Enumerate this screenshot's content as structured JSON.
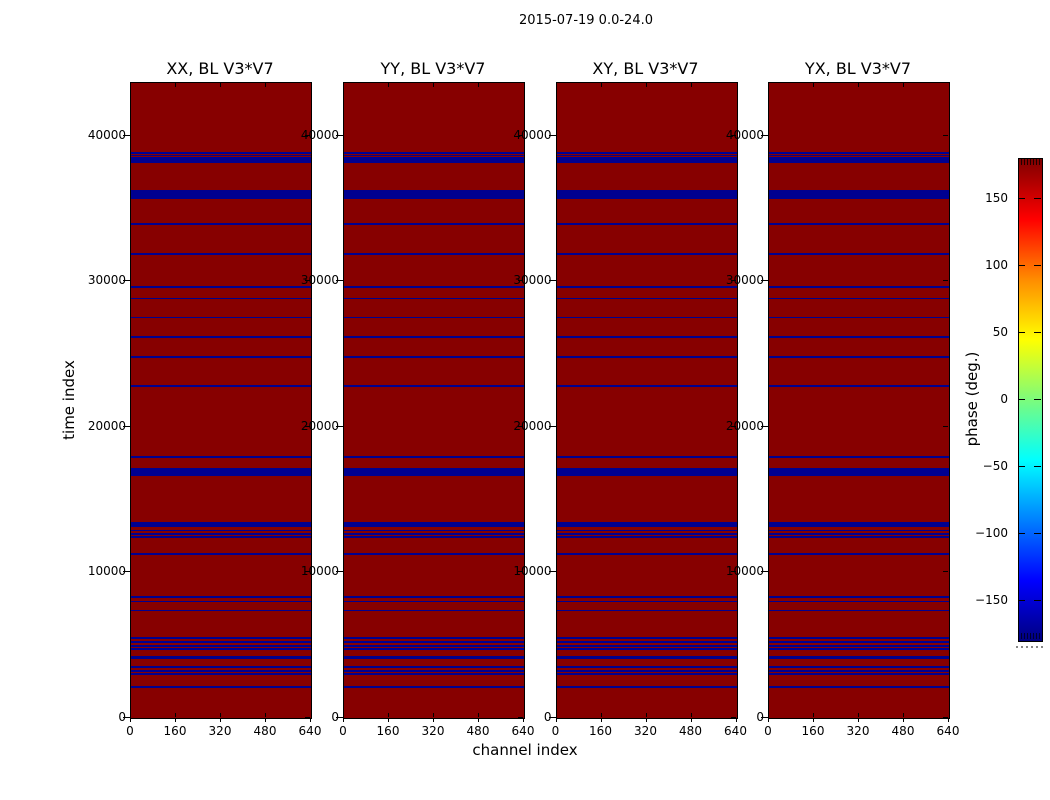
{
  "figure_title": "2015-07-19 0.0-24.0",
  "chart_data": {
    "type": "heatmap",
    "figure_title": "2015-07-19 0.0-24.0",
    "subplots": [
      {
        "title": "XX, BL V3*V7"
      },
      {
        "title": "YY, BL V3*V7"
      },
      {
        "title": "XY, BL V3*V7"
      },
      {
        "title": "YX, BL V3*V7"
      }
    ],
    "xlabel": "channel index",
    "ylabel": "time index",
    "xlim": [
      0,
      640
    ],
    "ylim": [
      0,
      43640
    ],
    "x_ticks": [
      0,
      160,
      320,
      480,
      640
    ],
    "x_tick_labels": [
      "0",
      "160",
      "320",
      "480",
      "640"
    ],
    "y_ticks": [
      0,
      10000,
      20000,
      30000,
      40000
    ],
    "y_tick_labels": [
      "0",
      "10000",
      "20000",
      "30000",
      "40000"
    ],
    "grid": false,
    "background_phase_color": "#870000",
    "stripe_color": "#000090",
    "stripes_time_and_thickness": [
      [
        38750,
        110
      ],
      [
        38590,
        110
      ],
      [
        38430,
        110
      ],
      [
        38270,
        110
      ],
      [
        38130,
        110
      ],
      [
        35930,
        600
      ],
      [
        33870,
        110
      ],
      [
        31810,
        110
      ],
      [
        29560,
        110
      ],
      [
        28760,
        110
      ],
      [
        27450,
        110
      ],
      [
        26100,
        110
      ],
      [
        24750,
        110
      ],
      [
        22730,
        110
      ],
      [
        17850,
        110
      ],
      [
        16830,
        530
      ],
      [
        13250,
        320
      ],
      [
        12810,
        110
      ],
      [
        12560,
        110
      ],
      [
        12350,
        110
      ],
      [
        11210,
        110
      ],
      [
        8250,
        110
      ],
      [
        7950,
        110
      ],
      [
        7330,
        110
      ],
      [
        5430,
        110
      ],
      [
        5160,
        110
      ],
      [
        4880,
        110
      ],
      [
        4680,
        110
      ],
      [
        4060,
        200
      ],
      [
        3440,
        110
      ],
      [
        3160,
        110
      ],
      [
        2960,
        110
      ],
      [
        2060,
        110
      ]
    ],
    "colorbar": {
      "label": "phase (deg.)",
      "colormap": "jet",
      "vmin": -180,
      "vmax": 180,
      "ticks": [
        150,
        100,
        50,
        0,
        -50,
        -100,
        -150
      ],
      "tick_labels": [
        "150",
        "100",
        "50",
        "0",
        "−50",
        "−100",
        "−150"
      ],
      "gradient_top_to_bottom": [
        [
          "#7f0000",
          0
        ],
        [
          "#ff0000",
          12.5
        ],
        [
          "#ff8c00",
          25
        ],
        [
          "#ffff00",
          37.5
        ],
        [
          "#7cfc7c",
          50
        ],
        [
          "#00ffff",
          62.5
        ],
        [
          "#0000ff",
          87.5
        ],
        [
          "#00007f",
          100
        ]
      ]
    }
  }
}
